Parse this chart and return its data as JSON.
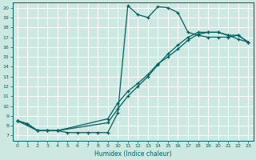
{
  "xlabel": "Humidex (Indice chaleur)",
  "bg_color": "#cce8e0",
  "grid_color": "#ffffff",
  "line_color": "#006060",
  "xlim": [
    -0.5,
    23.5
  ],
  "ylim": [
    6.5,
    20.5
  ],
  "xticks": [
    0,
    1,
    2,
    3,
    4,
    5,
    6,
    7,
    8,
    9,
    10,
    11,
    12,
    13,
    14,
    15,
    16,
    17,
    18,
    19,
    20,
    21,
    22,
    23
  ],
  "yticks": [
    7,
    8,
    9,
    10,
    11,
    12,
    13,
    14,
    15,
    16,
    17,
    18,
    19,
    20
  ],
  "line1_x": [
    0,
    1,
    2,
    3,
    4,
    5,
    6,
    7,
    8,
    9,
    10,
    11,
    12,
    13,
    14,
    15,
    16,
    17,
    18,
    19,
    20,
    21,
    22,
    23
  ],
  "line1_y": [
    8.5,
    8.2,
    7.5,
    7.5,
    7.5,
    7.3,
    7.3,
    7.3,
    7.3,
    7.3,
    9.3,
    20.2,
    19.3,
    19.0,
    20.1,
    20.0,
    19.5,
    17.5,
    17.2,
    17.0,
    17.0,
    17.0,
    17.2,
    16.5
  ],
  "line2_x": [
    0,
    1,
    2,
    3,
    4,
    9,
    10,
    11,
    12,
    13,
    14,
    15,
    16,
    17,
    18,
    19,
    20,
    21,
    22,
    23
  ],
  "line2_y": [
    8.5,
    8.2,
    7.5,
    7.5,
    7.5,
    8.7,
    10.3,
    11.5,
    12.3,
    13.2,
    14.3,
    15.0,
    15.8,
    16.7,
    17.3,
    17.5,
    17.5,
    17.2,
    17.2,
    16.5
  ],
  "line3_x": [
    0,
    2,
    3,
    4,
    9,
    10,
    11,
    12,
    13,
    14,
    15,
    16,
    17,
    18,
    19,
    20,
    21,
    22,
    23
  ],
  "line3_y": [
    8.5,
    7.5,
    7.5,
    7.5,
    8.3,
    9.7,
    11.0,
    12.0,
    13.0,
    14.2,
    15.3,
    16.2,
    17.0,
    17.5,
    17.5,
    17.5,
    17.2,
    16.8,
    16.5
  ]
}
